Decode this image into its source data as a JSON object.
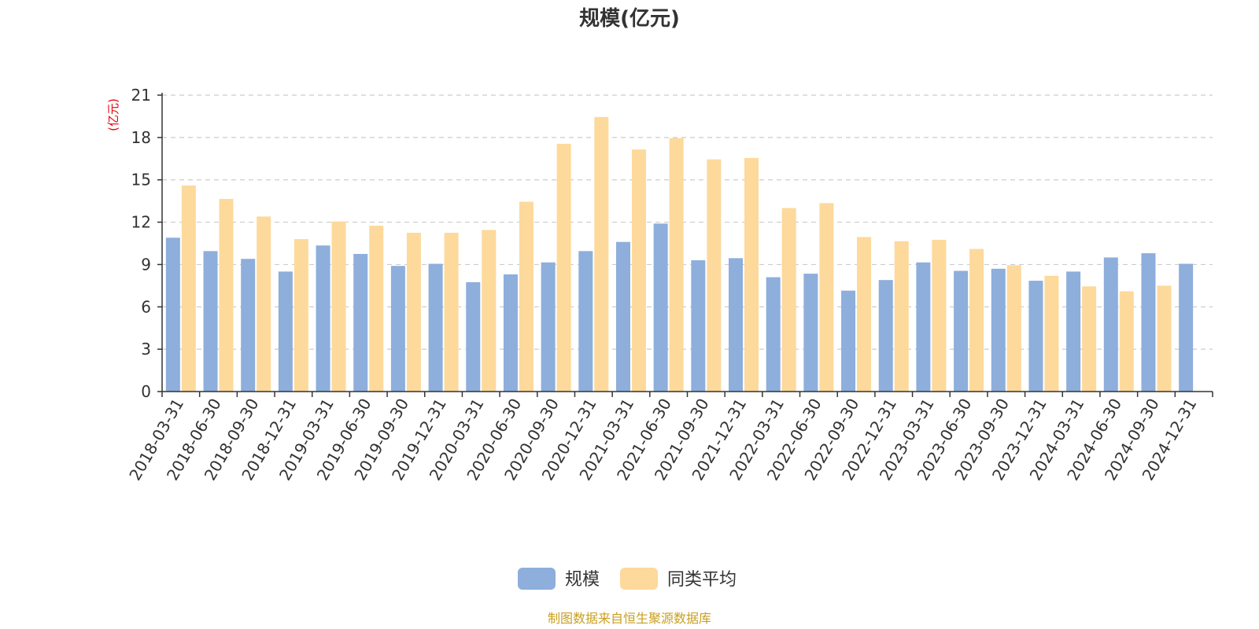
{
  "colors": {
    "series1": "#8eaedc",
    "series2": "#fdd99b",
    "axis": "#333333",
    "grid": "#cccccc",
    "unit": "#e8000b",
    "source": "#c8a020"
  },
  "chart_data": {
    "type": "bar",
    "title": "规模(亿元)",
    "ylabel": "(亿元)",
    "xlabel": "",
    "ylim": [
      0,
      21
    ],
    "yticks": [
      0,
      3,
      6,
      9,
      12,
      15,
      18,
      21
    ],
    "grid": true,
    "legend_position": "bottom-center",
    "categories": [
      "2018-03-31",
      "2018-06-30",
      "2018-09-30",
      "2018-12-31",
      "2019-03-31",
      "2019-06-30",
      "2019-09-30",
      "2019-12-31",
      "2020-03-31",
      "2020-06-30",
      "2020-09-30",
      "2020-12-31",
      "2021-03-31",
      "2021-06-30",
      "2021-09-30",
      "2021-12-31",
      "2022-03-31",
      "2022-06-30",
      "2022-09-30",
      "2022-12-31",
      "2023-03-31",
      "2023-06-30",
      "2023-09-30",
      "2023-12-31",
      "2024-03-31",
      "2024-06-30",
      "2024-09-30",
      "2024-12-31"
    ],
    "series": [
      {
        "name": "规模",
        "values": [
          10.9,
          9.95,
          9.4,
          8.5,
          10.35,
          9.75,
          8.9,
          9.05,
          7.75,
          8.3,
          9.15,
          9.95,
          10.6,
          11.9,
          9.3,
          9.45,
          8.1,
          8.35,
          7.15,
          7.9,
          9.15,
          8.55,
          8.7,
          7.85,
          8.5,
          9.5,
          9.8,
          9.05
        ]
      },
      {
        "name": "同类平均",
        "values": [
          14.6,
          13.65,
          12.4,
          10.8,
          12.05,
          11.75,
          11.25,
          11.25,
          11.45,
          13.45,
          17.55,
          19.45,
          17.15,
          17.95,
          16.45,
          16.55,
          13.0,
          13.35,
          10.95,
          10.65,
          10.75,
          10.1,
          8.95,
          8.2,
          7.45,
          7.1,
          7.5,
          null
        ]
      }
    ]
  },
  "legend": {
    "items": [
      {
        "label": "规模",
        "color": "#8eaedc"
      },
      {
        "label": "同类平均",
        "color": "#fdd99b"
      }
    ]
  },
  "source_note": "制图数据来自恒生聚源数据库"
}
